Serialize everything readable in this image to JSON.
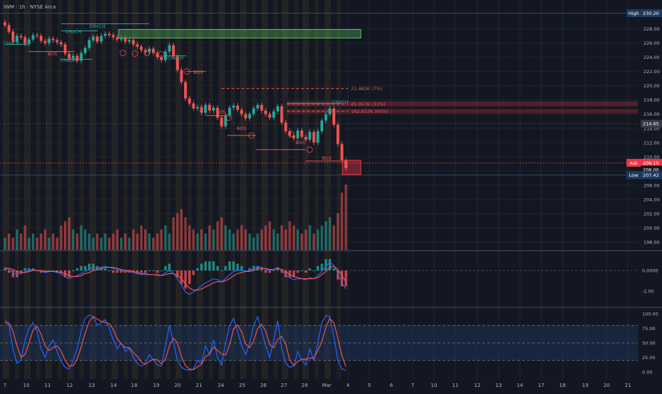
{
  "header": {
    "title": "IWM · 1h · NYSE Arca"
  },
  "colors": {
    "background": "#131722",
    "grid": "#1f2433",
    "up": "#26a69a",
    "down": "#ef5350",
    "session_band": "#3b3424",
    "hline": "#3e4453",
    "macd_line": "#2962ff",
    "signal_line": "#ef5350",
    "stoch_k": "#2962ff",
    "stoch_d": "#ef5350",
    "stoch_band": "#1e3353",
    "bos": "#ef5350",
    "choch": "#26a69a",
    "badge_dark": "#363a45",
    "badge_blue": "#1f3a5f",
    "badge_red": "#f23645"
  },
  "chart_data": [
    {
      "type": "candlestick",
      "symbol": "IWM",
      "interval": "1h",
      "exchange": "NYSE Arca",
      "y_ticks": [
        198.0,
        200.0,
        202.0,
        204.0,
        206.0,
        208.0,
        210.0,
        212.0,
        214.0,
        216.0,
        218.0,
        220.0,
        222.0,
        224.0,
        226.0,
        228.0
      ],
      "ylim": [
        196.5,
        231.5
      ],
      "x_ticks": [
        "7",
        "10",
        "11",
        "12",
        "13",
        "14",
        "18",
        "19",
        "20",
        "21",
        "24",
        "25",
        "26",
        "27",
        "28",
        "Mar",
        "4",
        "5",
        "6",
        "7",
        "10",
        "11",
        "12",
        "13",
        "14",
        "17",
        "18",
        "19",
        "20",
        "21"
      ],
      "closes": [
        228.5,
        227.6,
        226.2,
        227.0,
        226.8,
        225.9,
        226.5,
        227.1,
        227.0,
        226.3,
        226.0,
        226.6,
        226.4,
        226.1,
        225.8,
        224.5,
        223.8,
        224.2,
        223.5,
        224.6,
        225.3,
        226.4,
        226.9,
        226.2,
        227.0,
        227.3,
        227.1,
        226.8,
        226.5,
        226.7,
        226.2,
        226.4,
        225.8,
        225.5,
        225.0,
        224.7,
        225.2,
        224.6,
        224.0,
        223.6,
        224.8,
        225.7,
        224.1,
        222.2,
        220.5,
        218.2,
        217.5,
        216.8,
        217.0,
        216.2,
        217.3,
        216.5,
        216.9,
        215.5,
        214.3,
        215.8,
        216.9,
        217.2,
        216.6,
        216.0,
        215.4,
        216.0,
        216.8,
        217.3,
        216.5,
        216.0,
        215.5,
        216.4,
        217.1,
        214.8,
        213.6,
        213.0,
        212.6,
        213.7,
        212.8,
        212.4,
        213.5,
        212.0,
        213.6,
        215.1,
        216.0,
        216.8,
        214.5,
        211.8,
        209.5,
        208.4
      ],
      "annotations": [
        {
          "label": "CHoCH",
          "value": 225.8
        },
        {
          "label": "BOS",
          "value": 224.8
        },
        {
          "label": "CHoCH",
          "value": 227.7
        },
        {
          "label": "CHoCH",
          "value": 223.7
        },
        {
          "label": "CHoCH",
          "value": 228.7
        },
        {
          "label": "CHoCH",
          "value": 224.2
        },
        {
          "label": "BOS",
          "value": 222.0
        },
        {
          "label": "BOS",
          "value": 215.8
        },
        {
          "label": "BOS",
          "value": 213.0
        },
        {
          "label": "BOS",
          "value": 211.0
        },
        {
          "label": "BOS",
          "value": 209.4
        },
        {
          "label": "CHoCH",
          "value": 217.5
        }
      ],
      "level_labels": [
        {
          "label": "21.462K (7%)",
          "value": 219.6
        },
        {
          "label": "85.957K (31%)",
          "value": 217.4
        },
        {
          "label": "162.622K (60%)",
          "value": 216.4
        }
      ],
      "zones": [
        {
          "kind": "supply",
          "from": 226.7,
          "to": 227.9
        },
        {
          "kind": "level",
          "from": 217.1,
          "to": 217.8
        },
        {
          "kind": "level",
          "from": 216.1,
          "to": 216.7
        },
        {
          "kind": "demand",
          "from": 207.5,
          "to": 209.5
        }
      ],
      "badges": {
        "high": {
          "label": "High",
          "value": "230.20"
        },
        "last": {
          "value": "214.65"
        },
        "ask": {
          "label": "Ask",
          "value": "209.15"
        },
        "mid": {
          "value": "208.00"
        },
        "low": {
          "label": "Low",
          "value": "207.42"
        }
      },
      "volume": [
        3,
        4,
        3,
        5,
        4,
        6,
        3,
        4,
        3,
        4,
        5,
        3,
        4,
        3,
        6,
        7,
        8,
        5,
        4,
        6,
        5,
        4,
        3,
        4,
        3,
        4,
        3,
        4,
        5,
        3,
        4,
        3,
        5,
        4,
        6,
        5,
        4,
        3,
        4,
        5,
        6,
        4,
        8,
        9,
        10,
        8,
        6,
        5,
        4,
        5,
        4,
        6,
        5,
        7,
        8,
        6,
        5,
        4,
        5,
        6,
        5,
        4,
        3,
        4,
        5,
        6,
        7,
        5,
        4,
        6,
        5,
        7,
        6,
        5,
        4,
        5,
        6,
        4,
        5,
        6,
        7,
        8,
        6,
        9,
        14,
        16
      ]
    },
    {
      "type": "line",
      "name": "MACD",
      "y_ticks": [
        "0.0000",
        "-2.00"
      ],
      "ylim": [
        -3.0,
        2.0
      ],
      "macd": [
        0.3,
        0.1,
        -0.2,
        -0.4,
        -0.3,
        -0.1,
        0.0,
        0.1,
        0.0,
        -0.1,
        -0.2,
        -0.1,
        -0.1,
        -0.2,
        -0.3,
        -0.6,
        -0.8,
        -0.6,
        -0.5,
        -0.3,
        -0.1,
        0.1,
        0.3,
        0.3,
        0.3,
        0.4,
        0.3,
        0.2,
        0.1,
        0.0,
        -0.1,
        -0.1,
        -0.2,
        -0.3,
        -0.4,
        -0.4,
        -0.4,
        -0.4,
        -0.5,
        -0.5,
        -0.2,
        0.0,
        -0.3,
        -0.8,
        -1.4,
        -2.1,
        -2.3,
        -2.1,
        -1.8,
        -1.5,
        -1.2,
        -1.0,
        -0.8,
        -0.9,
        -1.1,
        -0.8,
        -0.4,
        -0.1,
        0.0,
        0.0,
        -0.1,
        0.0,
        0.2,
        0.4,
        0.3,
        0.1,
        0.0,
        0.1,
        0.3,
        0.0,
        -0.4,
        -0.7,
        -0.9,
        -0.8,
        -0.8,
        -0.9,
        -0.7,
        -0.8,
        -0.5,
        -0.1,
        0.4,
        0.8,
        0.5,
        -0.3,
        -1.2,
        -1.8
      ],
      "signal": [
        0.2,
        0.2,
        0.1,
        -0.1,
        -0.2,
        -0.2,
        -0.1,
        0.0,
        0.0,
        0.0,
        -0.1,
        -0.1,
        -0.1,
        -0.1,
        -0.2,
        -0.3,
        -0.5,
        -0.6,
        -0.6,
        -0.5,
        -0.3,
        -0.2,
        0.0,
        0.1,
        0.2,
        0.3,
        0.3,
        0.3,
        0.2,
        0.1,
        0.0,
        0.0,
        -0.1,
        -0.2,
        -0.3,
        -0.3,
        -0.4,
        -0.4,
        -0.4,
        -0.5,
        -0.4,
        -0.3,
        -0.3,
        -0.5,
        -0.8,
        -1.3,
        -1.7,
        -1.9,
        -1.9,
        -1.8,
        -1.6,
        -1.4,
        -1.2,
        -1.1,
        -1.1,
        -1.0,
        -0.8,
        -0.5,
        -0.3,
        -0.2,
        -0.1,
        -0.1,
        0.0,
        0.2,
        0.2,
        0.2,
        0.1,
        0.1,
        0.2,
        0.1,
        -0.1,
        -0.4,
        -0.6,
        -0.7,
        -0.8,
        -0.8,
        -0.8,
        -0.8,
        -0.7,
        -0.4,
        -0.1,
        0.3,
        0.4,
        0.1,
        -0.5,
        -1.1
      ]
    },
    {
      "type": "line",
      "name": "Stoch RSI",
      "y_ticks": [
        "100.00",
        "75.00",
        "50.00",
        "25.00",
        "0.00"
      ],
      "ylim": [
        -3,
        106
      ],
      "band": [
        20,
        80
      ],
      "k": [
        90,
        80,
        40,
        15,
        20,
        55,
        75,
        85,
        70,
        40,
        25,
        45,
        55,
        35,
        18,
        8,
        5,
        20,
        40,
        70,
        92,
        98,
        95,
        80,
        85,
        90,
        75,
        55,
        40,
        50,
        35,
        40,
        25,
        15,
        10,
        15,
        30,
        20,
        12,
        10,
        45,
        80,
        50,
        20,
        8,
        4,
        3,
        5,
        20,
        15,
        45,
        30,
        55,
        25,
        12,
        50,
        80,
        92,
        70,
        45,
        30,
        50,
        80,
        95,
        70,
        45,
        25,
        55,
        88,
        40,
        15,
        8,
        10,
        35,
        20,
        12,
        40,
        20,
        50,
        85,
        97,
        95,
        60,
        20,
        5,
        3
      ],
      "d": [
        85,
        84,
        70,
        45,
        25,
        30,
        50,
        72,
        78,
        65,
        45,
        37,
        42,
        45,
        36,
        20,
        10,
        11,
        22,
        43,
        67,
        87,
        95,
        91,
        87,
        85,
        83,
        73,
        57,
        48,
        42,
        42,
        33,
        27,
        17,
        13,
        18,
        22,
        21,
        14,
        22,
        45,
        58,
        50,
        26,
        11,
        5,
        4,
        9,
        13,
        27,
        30,
        43,
        37,
        31,
        29,
        47,
        74,
        81,
        69,
        48,
        42,
        53,
        75,
        82,
        70,
        47,
        42,
        56,
        61,
        48,
        21,
        11,
        18,
        22,
        22,
        24,
        24,
        37,
        52,
        77,
        92,
        84,
        58,
        28,
        9
      ]
    }
  ]
}
